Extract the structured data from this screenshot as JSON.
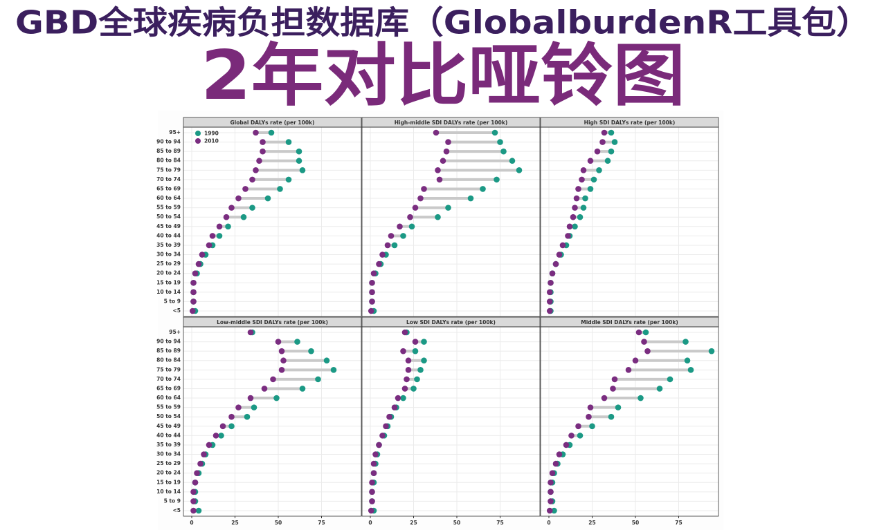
{
  "header": {
    "title": "GBD全球疾病负担数据库（GlobalburdenR工具包）",
    "subtitle": "2年对比哑铃图"
  },
  "chart_data": {
    "type": "dumbbell",
    "categories": [
      "95+",
      "90 to 94",
      "85 to 89",
      "80 to 84",
      "75 to 79",
      "70 to 74",
      "65 to 69",
      "60 to 64",
      "55 to 59",
      "50 to 54",
      "45 to 49",
      "40 to 44",
      "35 to 39",
      "30 to 34",
      "25 to 29",
      "20 to 24",
      "15 to 19",
      "10 to 14",
      "5 to 9",
      "<5"
    ],
    "xlim": [
      -4.8,
      98
    ],
    "xticks": [
      0,
      25,
      50,
      75
    ],
    "grid": true,
    "legend_position": "top-left",
    "legend": [
      {
        "name": "1990",
        "color": "#1b9985"
      },
      {
        "name": "2010",
        "color": "#7a2d80"
      }
    ],
    "facets": [
      {
        "title": "Global DALYs rate (per 100k)",
        "series": [
          {
            "values": [
              46,
              56,
              62,
              62,
              64,
              56,
              51,
              44,
              35,
              30,
              21,
              16,
              12,
              8,
              5,
              3,
              1,
              1,
              1,
              2
            ]
          },
          {
            "values": [
              37,
              41,
              41,
              39,
              37,
              35,
              31,
              27,
              23,
              20,
              16,
              12,
              10,
              6,
              4,
              2,
              1,
              1,
              1,
              0.5
            ]
          }
        ]
      },
      {
        "title": "High-middle SDI DALYs rate (per 100k)",
        "series": [
          {
            "values": [
              72,
              75,
              77,
              82,
              86,
              73,
              65,
              58,
              45,
              39,
              24,
              19,
              14,
              9,
              6,
              3,
              1,
              1,
              1,
              2
            ]
          },
          {
            "values": [
              38,
              45,
              44,
              42,
              39,
              40,
              31,
              29,
              26,
              23,
              17,
              12,
              10,
              7,
              5,
              2,
              1,
              1,
              1,
              0.5
            ]
          }
        ]
      },
      {
        "title": "High SDI DALYs rate (per 100k)",
        "series": [
          {
            "values": [
              36,
              38,
              36,
              34,
              29,
              26,
              24,
              21,
              20,
              18,
              15,
              12,
              10,
              7,
              4,
              2,
              1,
              1,
              1,
              1
            ]
          },
          {
            "values": [
              32,
              31,
              28,
              24,
              20,
              19,
              17,
              16,
              15,
              14,
              12,
              11,
              8,
              6,
              4,
              2,
              1,
              0.5,
              0.5,
              0.5
            ]
          }
        ]
      },
      {
        "title": "Low-middle SDI DALYs rate (per 100k)",
        "series": [
          {
            "values": [
              35,
              61,
              69,
              78,
              82,
              73,
              64,
              49,
              36,
              32,
              23,
              17,
              12,
              8,
              6,
              4,
              2,
              2,
              2,
              4
            ]
          },
          {
            "values": [
              34,
              50,
              52,
              53,
              52,
              47,
              42,
              34,
              27,
              23,
              18,
              14,
              10,
              7,
              5,
              3,
              2,
              1,
              1,
              1
            ]
          }
        ]
      },
      {
        "title": "Low SDI DALYs rate (per 100k)",
        "series": [
          {
            "values": [
              21,
              31,
              26,
              31,
              29,
              27,
              25,
              19,
              15,
              12,
              10,
              8,
              5,
              4,
              3,
              2,
              2,
              1,
              1,
              2
            ]
          },
          {
            "values": [
              20,
              26,
              19,
              22,
              22,
              21,
              20,
              16,
              14,
              11,
              9,
              7,
              5,
              3,
              2,
              2,
              1,
              1,
              1,
              0.5
            ]
          }
        ]
      },
      {
        "title": "Middle SDI DALYs rate (per 100k)",
        "series": [
          {
            "values": [
              56,
              79,
              94,
              80,
              82,
              70,
              64,
              53,
              40,
              36,
              25,
              18,
              12,
              8,
              5,
              3,
              2,
              1,
              2,
              3
            ]
          },
          {
            "values": [
              52,
              55,
              57,
              50,
              46,
              38,
              37,
              32,
              24,
              23,
              17,
              13,
              10,
              6,
              4,
              2,
              1,
              1,
              1,
              0.5
            ]
          }
        ]
      }
    ]
  }
}
